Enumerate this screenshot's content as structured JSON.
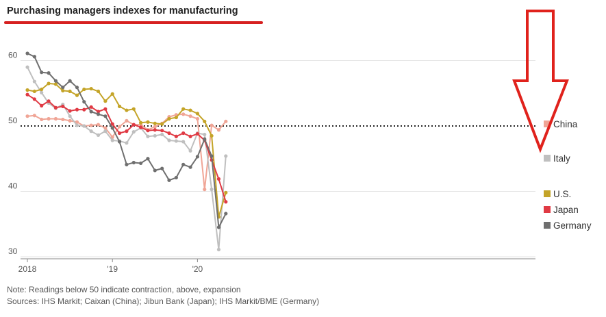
{
  "title": "Purchasing managers indexes for manufacturing",
  "note": "Note: Readings below 50 indicate contraction, above, expansion",
  "sources": "Sources: IHS Markit; Caixan (China); Jibun Bank (Japan); IHS Markit/BME (Germany)",
  "annotation": {
    "type": "arrow-down-outline",
    "color": "#e0221c"
  },
  "chart_data": {
    "type": "line",
    "title": "Purchasing managers indexes for manufacturing",
    "xlabel": "",
    "ylabel": "",
    "x_ticks": [
      "2018",
      "'19",
      "'20"
    ],
    "x": [
      "2018-01",
      "2018-02",
      "2018-03",
      "2018-04",
      "2018-05",
      "2018-06",
      "2018-07",
      "2018-08",
      "2018-09",
      "2018-10",
      "2018-11",
      "2018-12",
      "2019-01",
      "2019-02",
      "2019-03",
      "2019-04",
      "2019-05",
      "2019-06",
      "2019-07",
      "2019-08",
      "2019-09",
      "2019-10",
      "2019-11",
      "2019-12",
      "2020-01",
      "2020-02",
      "2020-03",
      "2020-04",
      "2020-05"
    ],
    "y_ticks": [
      30,
      40,
      50,
      60
    ],
    "ylim": [
      30,
      63
    ],
    "reference_line": 50,
    "grid": "horizontal",
    "legend_position": "right",
    "series": [
      {
        "name": "China",
        "color": "#f0a596",
        "values": [
          51.5,
          51.6,
          51.0,
          51.1,
          51.1,
          51.0,
          50.8,
          50.6,
          50.0,
          50.1,
          50.2,
          49.7,
          48.3,
          49.9,
          50.8,
          50.2,
          50.2,
          49.4,
          49.9,
          50.4,
          51.4,
          51.7,
          51.8,
          51.5,
          51.1,
          40.3,
          50.1,
          49.4,
          50.7
        ]
      },
      {
        "name": "Italy",
        "color": "#bfbfbf",
        "values": [
          59.0,
          56.8,
          55.1,
          53.5,
          52.7,
          53.3,
          51.5,
          50.1,
          50.0,
          49.2,
          48.6,
          49.2,
          47.8,
          47.7,
          47.4,
          49.1,
          49.7,
          48.4,
          48.5,
          48.7,
          47.8,
          47.7,
          47.6,
          46.2,
          48.9,
          48.7,
          40.3,
          31.1,
          45.4
        ]
      },
      {
        "name": "U.S.",
        "color": "#c4a428",
        "values": [
          55.5,
          55.3,
          55.6,
          56.5,
          56.4,
          55.4,
          55.3,
          54.7,
          55.6,
          55.7,
          55.3,
          53.8,
          54.9,
          53.0,
          52.4,
          52.6,
          50.5,
          50.6,
          50.4,
          50.3,
          51.1,
          51.3,
          52.6,
          52.4,
          51.9,
          50.7,
          48.5,
          36.1,
          39.8
        ]
      },
      {
        "name": "Japan",
        "color": "#e03a44",
        "values": [
          54.8,
          54.1,
          53.1,
          53.8,
          52.8,
          53.0,
          52.3,
          52.5,
          52.5,
          52.9,
          52.2,
          52.6,
          50.3,
          48.9,
          49.2,
          50.2,
          49.8,
          49.3,
          49.4,
          49.3,
          48.9,
          48.4,
          48.9,
          48.4,
          48.8,
          47.8,
          44.8,
          41.9,
          38.4
        ]
      },
      {
        "name": "Germany",
        "color": "#6f6f6f",
        "values": [
          61.1,
          60.6,
          58.2,
          58.1,
          56.9,
          55.9,
          56.9,
          55.9,
          53.7,
          52.2,
          51.8,
          51.5,
          49.7,
          47.6,
          44.1,
          44.4,
          44.3,
          45.0,
          43.2,
          43.5,
          41.7,
          42.1,
          44.1,
          43.7,
          45.3,
          48.0,
          45.4,
          34.5,
          36.6
        ]
      }
    ]
  }
}
